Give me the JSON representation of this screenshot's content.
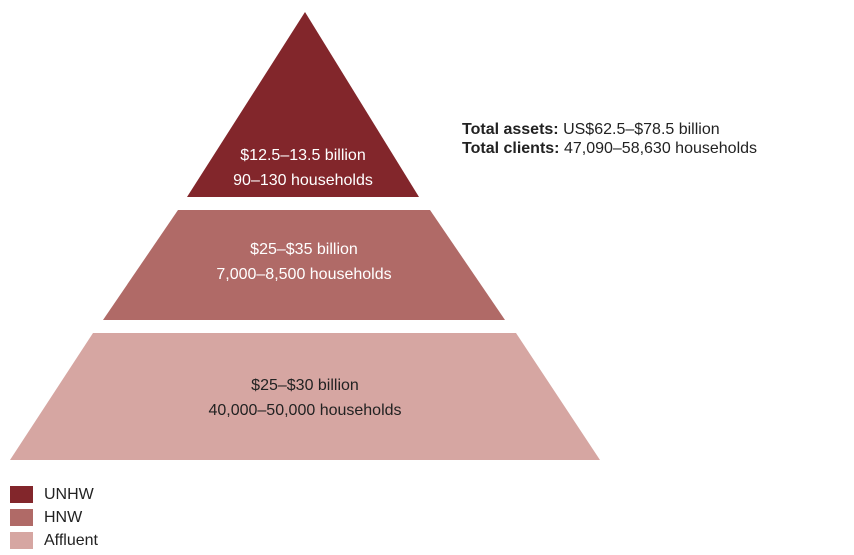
{
  "tiers": [
    {
      "key": "unhw",
      "assets": "$12.5–13.5 billion",
      "households": "90–130 households",
      "color": "#82262b"
    },
    {
      "key": "hnw",
      "assets": "$25–$35 billion",
      "households": "7,000–8,500 households",
      "color": "#b06a67"
    },
    {
      "key": "affluent",
      "assets": "$25–$30 billion",
      "households": "40,000–50,000 households",
      "color": "#d6a6a2"
    }
  ],
  "totals": {
    "assets_label": "Total assets:",
    "assets_value": "US$62.5–$78.5 billion",
    "clients_label": "Total clients:",
    "clients_value": "47,090–58,630 households"
  },
  "legend": [
    {
      "label": "UNHW",
      "color": "#82262b"
    },
    {
      "label": "HNW",
      "color": "#b06a67"
    },
    {
      "label": "Affluent",
      "color": "#d6a6a2"
    }
  ]
}
